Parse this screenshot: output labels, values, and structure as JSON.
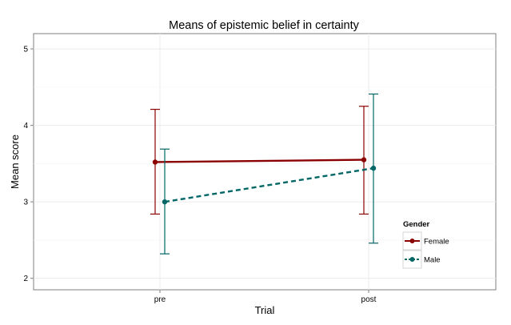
{
  "chart_data": {
    "type": "line",
    "title": "Means of epistemic belief in certainty",
    "xlabel": "Trial",
    "ylabel": "Mean score",
    "categories": [
      "pre",
      "post"
    ],
    "ylim": [
      1.85,
      5.2
    ],
    "yticks": [
      2,
      3,
      4,
      5
    ],
    "grid": true,
    "legend": {
      "title": "Gender",
      "placement": "right"
    },
    "series": [
      {
        "name": "Female",
        "color": "#8B0000",
        "line_style": "solid",
        "values": [
          3.52,
          3.55
        ],
        "ci_lower": [
          2.84,
          2.84
        ],
        "ci_upper": [
          4.21,
          4.25
        ]
      },
      {
        "name": "Male",
        "color": "#006666",
        "line_style": "dashed",
        "values": [
          3.0,
          3.44
        ],
        "ci_lower": [
          2.32,
          2.46
        ],
        "ci_upper": [
          3.69,
          4.41
        ]
      }
    ]
  }
}
